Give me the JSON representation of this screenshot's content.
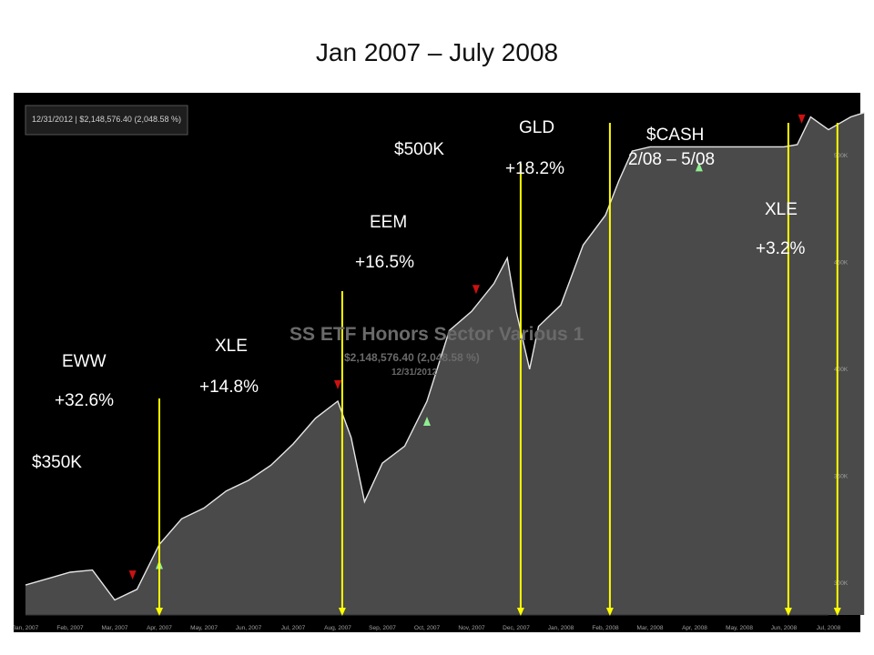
{
  "slide_title": "Jan 2007 – July 2008",
  "header_box": "12/31/2012 | $2,148,576.40 (2,048.58 %)",
  "watermark": {
    "name": "SS ETF Honors Sector Various 1",
    "value": "$2,148,576.40 (2,048.58 %)",
    "date": "12/31/2012"
  },
  "annotations": [
    {
      "id": "eww-name",
      "text": "EWW"
    },
    {
      "id": "eww-return",
      "text": "+32.6%"
    },
    {
      "id": "start-value",
      "text": "$350K"
    },
    {
      "id": "xle1-name",
      "text": "XLE"
    },
    {
      "id": "xle1-return",
      "text": "+14.8%"
    },
    {
      "id": "eem-name",
      "text": "EEM"
    },
    {
      "id": "eem-return",
      "text": "+16.5%"
    },
    {
      "id": "mid-value",
      "text": "$500K"
    },
    {
      "id": "gld-name",
      "text": "GLD"
    },
    {
      "id": "gld-return",
      "text": "+18.2%"
    },
    {
      "id": "cash-name",
      "text": "$CASH"
    },
    {
      "id": "cash-period",
      "text": "2/08 – 5/08"
    },
    {
      "id": "xle2-name",
      "text": "XLE"
    },
    {
      "id": "xle2-return",
      "text": "+3.2%"
    }
  ],
  "colors": {
    "background": "#000000",
    "area_fill": "#4a4a4a",
    "line": "#e6e6e6",
    "arrow": "#ffff00",
    "buy_marker": "#90ee90",
    "sell_marker": "#cc1111"
  },
  "chart_data": {
    "type": "area",
    "title": "Jan 2007 – July 2008",
    "x_tick_labels": [
      "Jan, 2007",
      "Feb, 2007",
      "Mar, 2007",
      "Apr, 2007",
      "May, 2007",
      "Jun, 2007",
      "Jul, 2007",
      "Aug, 2007",
      "Sep, 2007",
      "Oct, 2007",
      "Nov, 2007",
      "Dec, 2007",
      "Jan, 2008",
      "Feb, 2008",
      "Mar, 2008",
      "Apr, 2008",
      "May, 2008",
      "Jun, 2008",
      "Jul, 2008"
    ],
    "y_tick_labels": [
      "300K",
      "350K",
      "400K",
      "450K",
      "500K"
    ],
    "ylim": [
      285000,
      525000
    ],
    "grid": false,
    "series": [
      {
        "values": [
          [
            0,
            299000
          ],
          [
            1,
            305000
          ],
          [
            1.5,
            306000
          ],
          [
            2,
            292000
          ],
          [
            2.5,
            297000
          ],
          [
            3,
            318000
          ],
          [
            3.5,
            330000
          ],
          [
            4,
            335000
          ],
          [
            4.5,
            343000
          ],
          [
            5,
            348000
          ],
          [
            5.5,
            355000
          ],
          [
            6,
            365000
          ],
          [
            6.5,
            377000
          ],
          [
            7,
            385000
          ],
          [
            7.3,
            368000
          ],
          [
            7.6,
            338000
          ],
          [
            8,
            356000
          ],
          [
            8.5,
            364000
          ],
          [
            9,
            385000
          ],
          [
            9.5,
            418000
          ],
          [
            10,
            427000
          ],
          [
            10.5,
            440000
          ],
          [
            10.8,
            452000
          ],
          [
            11,
            427000
          ],
          [
            11.3,
            400000
          ],
          [
            11.5,
            420000
          ],
          [
            12,
            430000
          ],
          [
            12.5,
            458000
          ],
          [
            13,
            472000
          ],
          [
            13.3,
            488000
          ],
          [
            13.6,
            502000
          ],
          [
            14,
            504000
          ],
          [
            15,
            504000
          ],
          [
            16,
            504000
          ],
          [
            17,
            504000
          ],
          [
            17.3,
            505000
          ],
          [
            17.6,
            518000
          ],
          [
            18,
            512000
          ],
          [
            18.5,
            518000
          ],
          [
            18.8,
            520000
          ]
        ]
      }
    ],
    "trades": [
      {
        "etf": "EWW",
        "return": "+32.6%",
        "entry": "Apr, 2007"
      },
      {
        "etf": "XLE",
        "return": "+14.8%",
        "entry": "Aug, 2007"
      },
      {
        "etf": "EEM",
        "return": "+16.5%"
      },
      {
        "etf": "GLD",
        "return": "+18.2%",
        "entry": "Dec, 2007"
      },
      {
        "etf": "$CASH",
        "period": "2/08 – 5/08",
        "entry": "Feb, 2008"
      },
      {
        "etf": "XLE",
        "return": "+3.2%",
        "entry": "Jun, 2008"
      }
    ],
    "markers": [
      {
        "type": "buy",
        "x": 3
      },
      {
        "type": "sell",
        "x": 2.4
      },
      {
        "type": "buy",
        "x": 9
      },
      {
        "type": "sell",
        "x": 7
      },
      {
        "type": "sell",
        "x": 10.1
      },
      {
        "type": "buy",
        "x": 15.1
      },
      {
        "type": "sell",
        "x": 17.4
      }
    ],
    "exit_arrows_x": [
      3,
      7.1,
      11.1,
      13.1,
      17.1,
      18.2
    ]
  }
}
